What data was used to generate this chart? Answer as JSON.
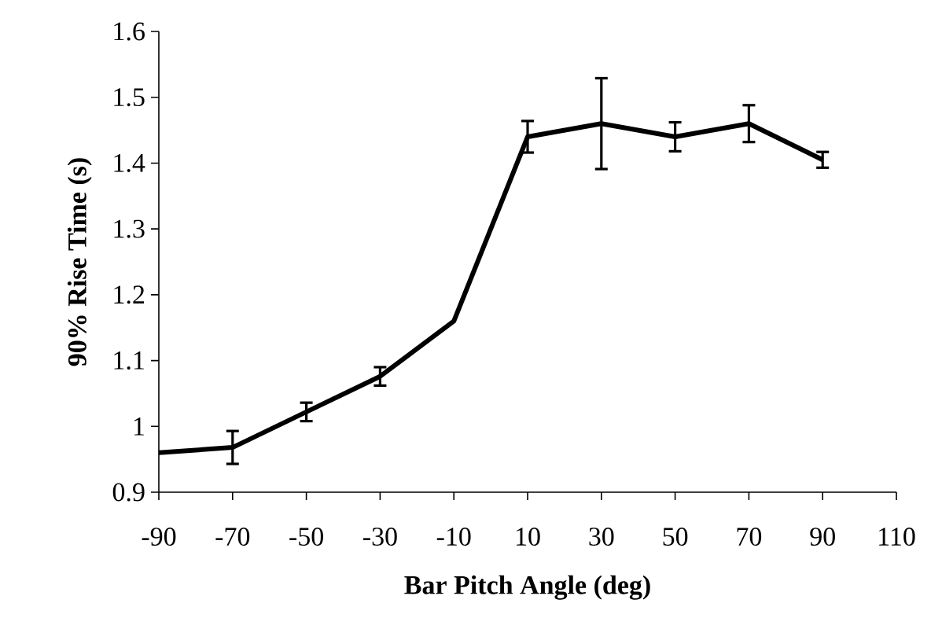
{
  "chart_data": {
    "type": "line",
    "xlabel": "Bar Pitch Angle (deg)",
    "ylabel": "90% Rise Time (s)",
    "x": [
      -90,
      -70,
      -50,
      -30,
      -10,
      10,
      30,
      50,
      70,
      90
    ],
    "series": [
      {
        "color": "#000000",
        "values": [
          0.96,
          0.968,
          1.022,
          1.076,
          1.16,
          1.44,
          1.46,
          1.44,
          1.46,
          1.405
        ],
        "errors": [
          null,
          0.025,
          0.014,
          0.014,
          null,
          0.024,
          0.069,
          0.022,
          0.028,
          0.012
        ]
      }
    ],
    "xlim": [
      -90,
      110
    ],
    "xticks": [
      -90,
      -70,
      -50,
      -30,
      -10,
      10,
      30,
      50,
      70,
      90,
      110
    ],
    "ylim": [
      0.9,
      1.6
    ],
    "yticks": [
      0.9,
      1,
      1.1,
      1.2,
      1.3,
      1.4,
      1.5,
      1.6
    ],
    "grid": false,
    "marker": "none",
    "line_style": "solid"
  }
}
